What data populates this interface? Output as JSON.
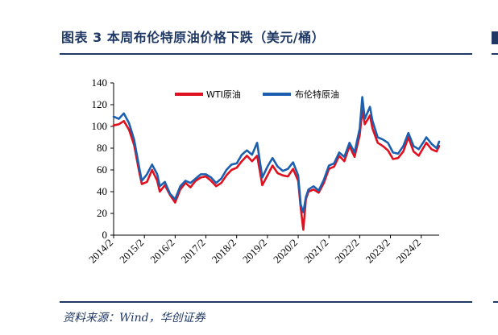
{
  "header": {
    "title": "图表 3  本周布伦特原油价格下跌（美元/桶）"
  },
  "footer": {
    "source": "资料来源：Wind，华创证券"
  },
  "colors": {
    "wti": "#e0101e",
    "brent": "#1b5fae",
    "rule": "#1f3864"
  },
  "chart_data": {
    "type": "line",
    "title": "",
    "xlabel": "",
    "ylabel": "",
    "ylim": [
      0,
      140
    ],
    "yticks": [
      0,
      20,
      40,
      60,
      80,
      100,
      120,
      140
    ],
    "xlim": [
      "2014/2",
      "2024/9"
    ],
    "xticks": [
      "2014/2",
      "2015/2",
      "2016/2",
      "2017/2",
      "2018/2",
      "2019/2",
      "2020/2",
      "2021/2",
      "2022/2",
      "2023/2",
      "2024/2"
    ],
    "legend_position": "top-center",
    "grid": false,
    "series": [
      {
        "name": "WTI原油",
        "x": [
          "2014/2",
          "2014/4",
          "2014/6",
          "2014/8",
          "2014/10",
          "2014/12",
          "2015/1",
          "2015/3",
          "2015/5",
          "2015/7",
          "2015/8",
          "2015/10",
          "2015/12",
          "2016/2",
          "2016/4",
          "2016/6",
          "2016/8",
          "2016/10",
          "2016/12",
          "2017/2",
          "2017/4",
          "2017/6",
          "2017/8",
          "2017/10",
          "2017/12",
          "2018/2",
          "2018/4",
          "2018/6",
          "2018/8",
          "2018/10",
          "2018/12",
          "2019/2",
          "2019/4",
          "2019/6",
          "2019/8",
          "2019/10",
          "2019/12",
          "2020/2",
          "2020/3",
          "2020/4",
          "2020/5",
          "2020/6",
          "2020/8",
          "2020/10",
          "2020/12",
          "2021/2",
          "2021/4",
          "2021/6",
          "2021/8",
          "2021/10",
          "2021/12",
          "2022/2",
          "2022/3",
          "2022/4",
          "2022/6",
          "2022/7",
          "2022/9",
          "2022/11",
          "2023/1",
          "2023/3",
          "2023/5",
          "2023/7",
          "2023/9",
          "2023/11",
          "2024/1",
          "2024/3",
          "2024/4",
          "2024/6",
          "2024/8",
          "2024/9"
        ],
        "values": [
          101,
          102,
          105,
          97,
          83,
          58,
          47,
          49,
          60,
          50,
          40,
          46,
          37,
          30,
          42,
          48,
          44,
          50,
          53,
          54,
          50,
          45,
          48,
          55,
          60,
          62,
          68,
          73,
          68,
          73,
          46,
          55,
          64,
          57,
          55,
          54,
          61,
          50,
          25,
          5,
          33,
          40,
          42,
          39,
          48,
          61,
          63,
          73,
          68,
          82,
          72,
          92,
          115,
          102,
          110,
          98,
          85,
          82,
          78,
          70,
          71,
          77,
          90,
          77,
          73,
          81,
          85,
          79,
          77,
          82
        ]
      },
      {
        "name": "布伦特原油",
        "x": [
          "2014/2",
          "2014/4",
          "2014/6",
          "2014/8",
          "2014/10",
          "2014/12",
          "2015/1",
          "2015/3",
          "2015/5",
          "2015/7",
          "2015/8",
          "2015/10",
          "2015/12",
          "2016/2",
          "2016/4",
          "2016/6",
          "2016/8",
          "2016/10",
          "2016/12",
          "2017/2",
          "2017/4",
          "2017/6",
          "2017/8",
          "2017/10",
          "2017/12",
          "2018/2",
          "2018/4",
          "2018/6",
          "2018/8",
          "2018/10",
          "2018/12",
          "2019/2",
          "2019/4",
          "2019/6",
          "2019/8",
          "2019/10",
          "2019/12",
          "2020/2",
          "2020/3",
          "2020/4",
          "2020/5",
          "2020/6",
          "2020/8",
          "2020/10",
          "2020/12",
          "2021/2",
          "2021/4",
          "2021/6",
          "2021/8",
          "2021/10",
          "2021/12",
          "2022/2",
          "2022/3",
          "2022/4",
          "2022/6",
          "2022/7",
          "2022/9",
          "2022/11",
          "2023/1",
          "2023/3",
          "2023/5",
          "2023/7",
          "2023/9",
          "2023/11",
          "2024/1",
          "2024/3",
          "2024/4",
          "2024/6",
          "2024/8",
          "2024/9"
        ],
        "values": [
          109,
          107,
          112,
          103,
          88,
          62,
          50,
          56,
          65,
          56,
          45,
          49,
          38,
          33,
          45,
          50,
          48,
          52,
          56,
          56,
          53,
          48,
          52,
          60,
          65,
          66,
          74,
          78,
          74,
          85,
          53,
          63,
          71,
          63,
          59,
          61,
          67,
          55,
          28,
          21,
          35,
          42,
          45,
          41,
          51,
          64,
          66,
          76,
          72,
          85,
          76,
          98,
          127,
          107,
          118,
          105,
          90,
          88,
          85,
          76,
          75,
          82,
          94,
          82,
          79,
          86,
          90,
          84,
          80,
          86
        ]
      }
    ]
  }
}
